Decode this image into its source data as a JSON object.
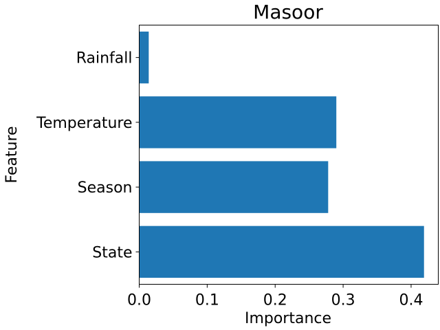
{
  "chart_data": {
    "type": "bar",
    "orientation": "horizontal",
    "title": "Masoor",
    "xlabel": "Importance",
    "ylabel": "Feature",
    "categories": [
      "State",
      "Season",
      "Temperature",
      "Rainfall"
    ],
    "values": [
      0.419,
      0.278,
      0.29,
      0.014
    ],
    "xlim": [
      0,
      0.44
    ],
    "xticks": [
      "0.0",
      "0.1",
      "0.2",
      "0.3",
      "0.4"
    ],
    "bar_color": "#1f77b4",
    "grid": false,
    "legend": "none"
  }
}
